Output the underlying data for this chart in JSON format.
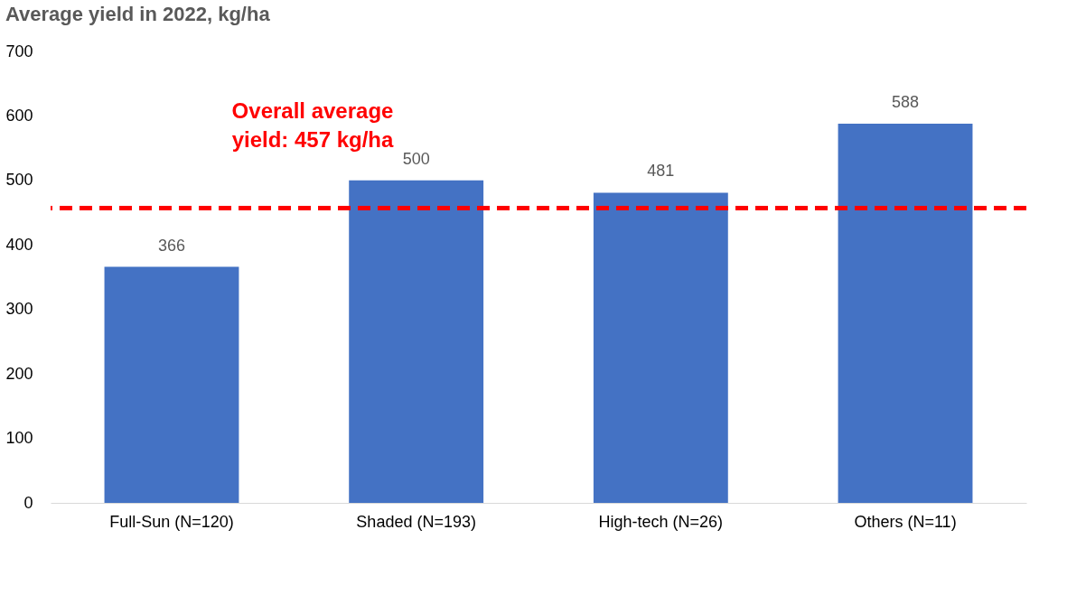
{
  "chart_data": {
    "type": "bar",
    "title": "Average yield in 2022, kg/ha",
    "categories": [
      "Full-Sun (N=120)",
      "Shaded (N=193)",
      "High-tech (N=26)",
      "Others (N=11)"
    ],
    "values": [
      366,
      500,
      481,
      588
    ],
    "color": "#4472c4",
    "ylim": [
      0,
      700
    ],
    "yticks": [
      0,
      100,
      200,
      300,
      400,
      500,
      600,
      700
    ],
    "grid": false,
    "data_labels": true,
    "ref_lines": [
      {
        "axis": "y",
        "value": 457,
        "label": "Overall average yield: 457 kg/ha",
        "color": "#ff0000",
        "line_style": "dashed"
      }
    ]
  }
}
